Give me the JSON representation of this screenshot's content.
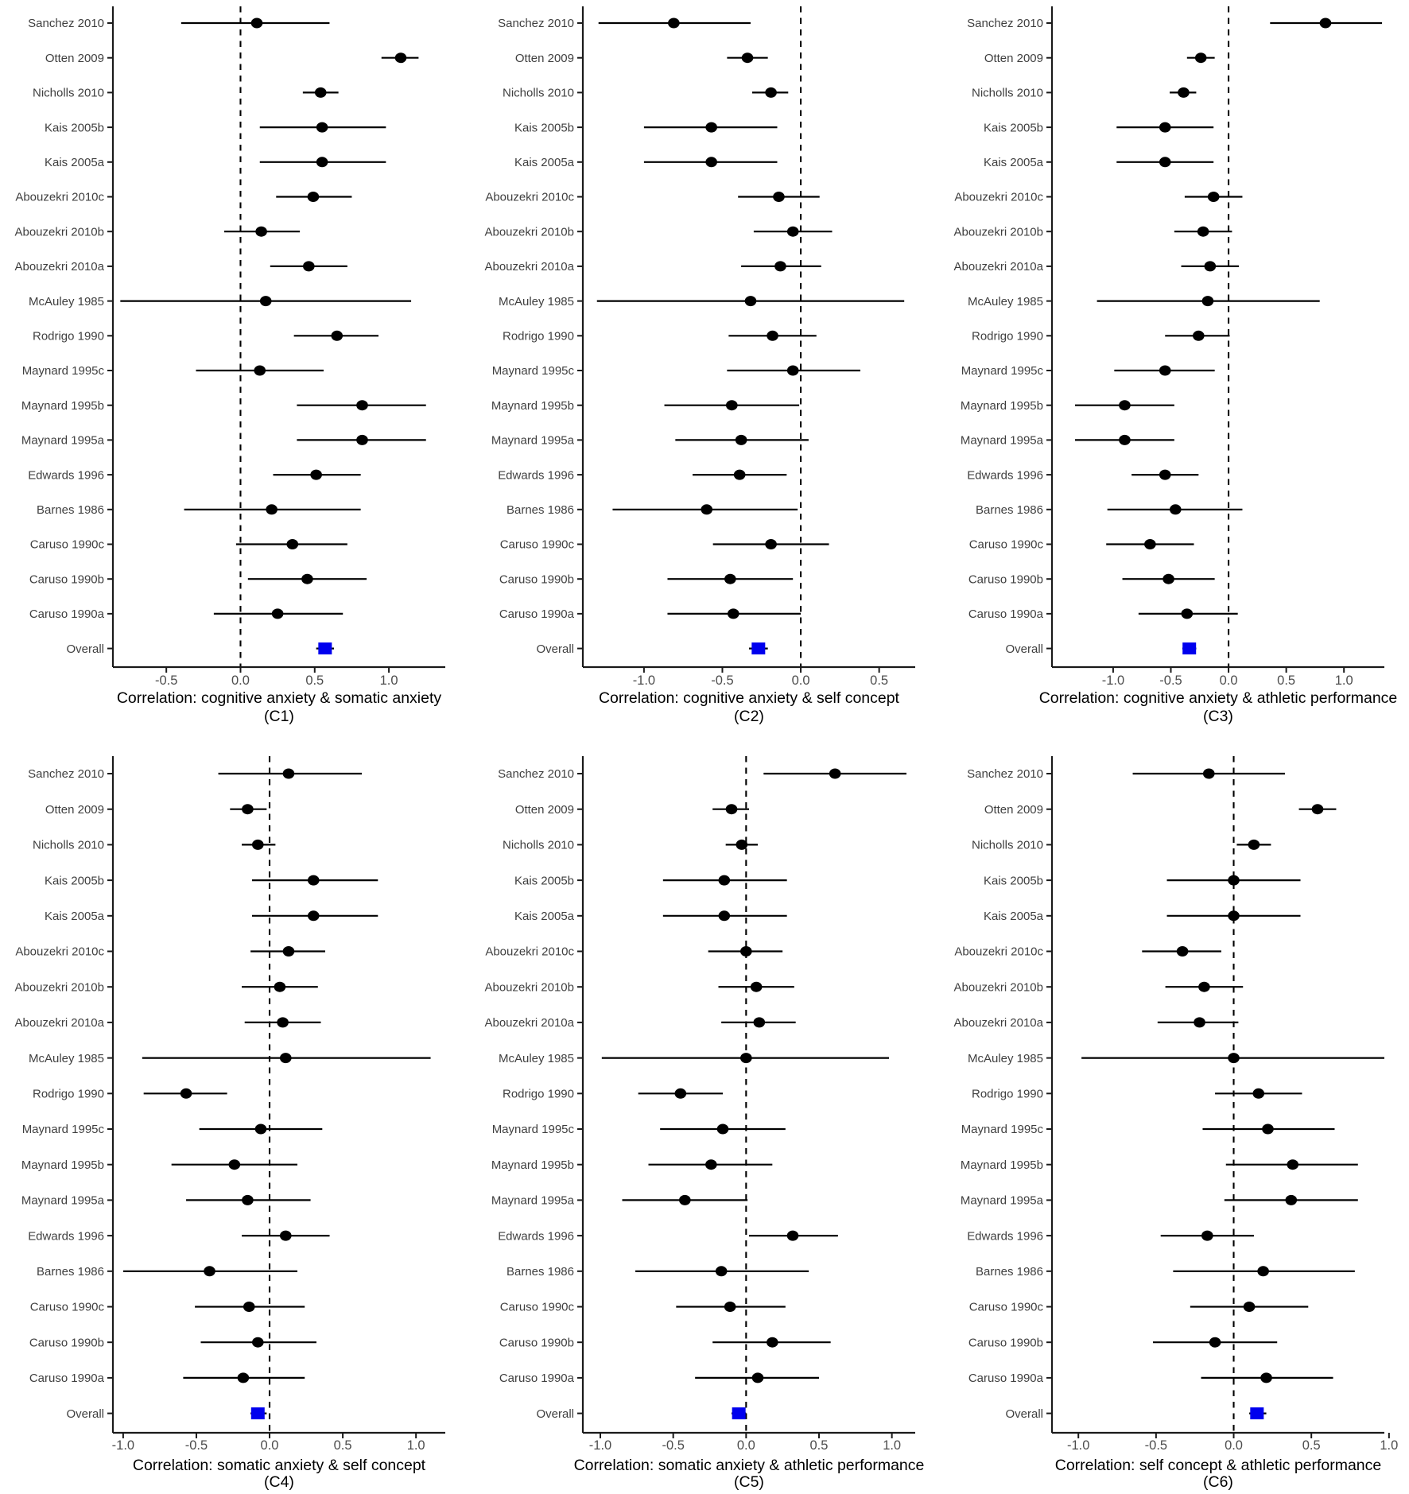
{
  "figure": {
    "background": "#ffffff",
    "point_color": "#000000",
    "summary_color": "#0000ee",
    "axis_color": "#1a1a1a",
    "ci_color": "#000000",
    "ref_line_color": "#000000",
    "study_label_color": "#3f3f3f",
    "tick_label_color": "#4d4d4d",
    "title_color": "#000000"
  },
  "chart_data": [
    {
      "id": "C1",
      "type": "scatter",
      "subtype": "forest",
      "title": "Correlation: cognitive anxiety & somatic anxiety",
      "panel_label": "(C1)",
      "legend": "none",
      "grid": false,
      "ref_line_x": 0,
      "xlim": [
        -0.86,
        1.38
      ],
      "x_tick_values": [
        -0.5,
        0.0,
        0.5,
        1.0
      ],
      "x_tick_labels": [
        "-0.5",
        "0.0",
        "0.5",
        "1.0"
      ],
      "rows": [
        {
          "label": "Sanchez 2010",
          "est": 0.11,
          "lo": -0.4,
          "hi": 0.6
        },
        {
          "label": "Otten 2009",
          "est": 1.08,
          "lo": 0.95,
          "hi": 1.2
        },
        {
          "label": "Nicholls 2010",
          "est": 0.54,
          "lo": 0.42,
          "hi": 0.66
        },
        {
          "label": "Kais 2005b",
          "est": 0.55,
          "lo": 0.13,
          "hi": 0.98
        },
        {
          "label": "Kais 2005a",
          "est": 0.55,
          "lo": 0.13,
          "hi": 0.98
        },
        {
          "label": "Abouzekri 2010c",
          "est": 0.49,
          "lo": 0.24,
          "hi": 0.75
        },
        {
          "label": "Abouzekri 2010b",
          "est": 0.14,
          "lo": -0.11,
          "hi": 0.4
        },
        {
          "label": "Abouzekri 2010a",
          "est": 0.46,
          "lo": 0.2,
          "hi": 0.72
        },
        {
          "label": "McAuley 1985",
          "est": 0.17,
          "lo": -0.81,
          "hi": 1.15
        },
        {
          "label": "Rodrigo 1990",
          "est": 0.65,
          "lo": 0.36,
          "hi": 0.93
        },
        {
          "label": "Maynard 1995c",
          "est": 0.13,
          "lo": -0.3,
          "hi": 0.56
        },
        {
          "label": "Maynard 1995b",
          "est": 0.82,
          "lo": 0.38,
          "hi": 1.25
        },
        {
          "label": "Maynard 1995a",
          "est": 0.82,
          "lo": 0.38,
          "hi": 1.25
        },
        {
          "label": "Edwards 1996",
          "est": 0.51,
          "lo": 0.22,
          "hi": 0.81
        },
        {
          "label": "Barnes 1986",
          "est": 0.21,
          "lo": -0.38,
          "hi": 0.81
        },
        {
          "label": "Caruso 1990c",
          "est": 0.35,
          "lo": -0.03,
          "hi": 0.72
        },
        {
          "label": "Caruso 1990b",
          "est": 0.45,
          "lo": 0.05,
          "hi": 0.85
        },
        {
          "label": "Caruso 1990a",
          "est": 0.25,
          "lo": -0.18,
          "hi": 0.69
        },
        {
          "label": "Overall",
          "est": 0.57,
          "lo": 0.51,
          "hi": 0.63,
          "summary": true
        }
      ]
    },
    {
      "id": "C2",
      "type": "scatter",
      "subtype": "forest",
      "title": "Correlation: cognitive anxiety & self concept",
      "panel_label": "(C2)",
      "legend": "none",
      "grid": false,
      "ref_line_x": 0,
      "xlim": [
        -1.39,
        0.73
      ],
      "x_tick_values": [
        -1.0,
        -0.5,
        0.0,
        0.5
      ],
      "x_tick_labels": [
        "-1.0",
        "-0.5",
        "0.0",
        "0.5"
      ],
      "rows": [
        {
          "label": "Sanchez 2010",
          "est": -0.81,
          "lo": -1.29,
          "hi": -0.32
        },
        {
          "label": "Otten 2009",
          "est": -0.34,
          "lo": -0.47,
          "hi": -0.21
        },
        {
          "label": "Nicholls 2010",
          "est": -0.19,
          "lo": -0.31,
          "hi": -0.08
        },
        {
          "label": "Kais 2005b",
          "est": -0.57,
          "lo": -1.0,
          "hi": -0.15
        },
        {
          "label": "Kais 2005a",
          "est": -0.57,
          "lo": -1.0,
          "hi": -0.15
        },
        {
          "label": "Abouzekri 2010c",
          "est": -0.14,
          "lo": -0.4,
          "hi": 0.12
        },
        {
          "label": "Abouzekri 2010b",
          "est": -0.05,
          "lo": -0.3,
          "hi": 0.2
        },
        {
          "label": "Abouzekri 2010a",
          "est": -0.13,
          "lo": -0.38,
          "hi": 0.13
        },
        {
          "label": "McAuley 1985",
          "est": -0.32,
          "lo": -1.3,
          "hi": 0.66
        },
        {
          "label": "Rodrigo 1990",
          "est": -0.18,
          "lo": -0.46,
          "hi": 0.1
        },
        {
          "label": "Maynard 1995c",
          "est": -0.05,
          "lo": -0.47,
          "hi": 0.38
        },
        {
          "label": "Maynard 1995b",
          "est": -0.44,
          "lo": -0.87,
          "hi": -0.01
        },
        {
          "label": "Maynard 1995a",
          "est": -0.38,
          "lo": -0.8,
          "hi": 0.05
        },
        {
          "label": "Edwards 1996",
          "est": -0.39,
          "lo": -0.69,
          "hi": -0.09
        },
        {
          "label": "Barnes 1986",
          "est": -0.6,
          "lo": -1.2,
          "hi": -0.02
        },
        {
          "label": "Caruso 1990c",
          "est": -0.19,
          "lo": -0.56,
          "hi": 0.18
        },
        {
          "label": "Caruso 1990b",
          "est": -0.45,
          "lo": -0.85,
          "hi": -0.05
        },
        {
          "label": "Caruso 1990a",
          "est": -0.43,
          "lo": -0.85,
          "hi": 0.0
        },
        {
          "label": "Overall",
          "est": -0.27,
          "lo": -0.33,
          "hi": -0.21,
          "summary": true
        }
      ]
    },
    {
      "id": "C3",
      "type": "scatter",
      "subtype": "forest",
      "title": "Correlation: cognitive anxiety & athletic performance",
      "panel_label": "(C3)",
      "legend": "none",
      "grid": false,
      "ref_line_x": 0,
      "xlim": [
        -1.53,
        1.35
      ],
      "x_tick_values": [
        -1.0,
        -0.5,
        0.0,
        0.5,
        1.0
      ],
      "x_tick_labels": [
        "-1.0",
        "-0.5",
        "0.0",
        "0.5",
        "1.0"
      ],
      "rows": [
        {
          "label": "Sanchez 2010",
          "est": 0.84,
          "lo": 0.36,
          "hi": 1.33
        },
        {
          "label": "Otten 2009",
          "est": -0.24,
          "lo": -0.36,
          "hi": -0.12
        },
        {
          "label": "Nicholls 2010",
          "est": -0.39,
          "lo": -0.51,
          "hi": -0.28
        },
        {
          "label": "Kais 2005b",
          "est": -0.55,
          "lo": -0.97,
          "hi": -0.13
        },
        {
          "label": "Kais 2005a",
          "est": -0.55,
          "lo": -0.97,
          "hi": -0.13
        },
        {
          "label": "Abouzekri 2010c",
          "est": -0.13,
          "lo": -0.38,
          "hi": 0.12
        },
        {
          "label": "Abouzekri 2010b",
          "est": -0.22,
          "lo": -0.47,
          "hi": 0.03
        },
        {
          "label": "Abouzekri 2010a",
          "est": -0.16,
          "lo": -0.41,
          "hi": 0.09
        },
        {
          "label": "McAuley 1985",
          "est": -0.18,
          "lo": -1.14,
          "hi": 0.79
        },
        {
          "label": "Rodrigo 1990",
          "est": -0.26,
          "lo": -0.55,
          "hi": 0.01
        },
        {
          "label": "Maynard 1995c",
          "est": -0.55,
          "lo": -0.99,
          "hi": -0.12
        },
        {
          "label": "Maynard 1995b",
          "est": -0.9,
          "lo": -1.33,
          "hi": -0.47
        },
        {
          "label": "Maynard 1995a",
          "est": -0.9,
          "lo": -1.33,
          "hi": -0.47
        },
        {
          "label": "Edwards 1996",
          "est": -0.55,
          "lo": -0.84,
          "hi": -0.26
        },
        {
          "label": "Barnes 1986",
          "est": -0.46,
          "lo": -1.05,
          "hi": 0.12
        },
        {
          "label": "Caruso 1990c",
          "est": -0.68,
          "lo": -1.06,
          "hi": -0.3
        },
        {
          "label": "Caruso 1990b",
          "est": -0.52,
          "lo": -0.92,
          "hi": -0.12
        },
        {
          "label": "Caruso 1990a",
          "est": -0.36,
          "lo": -0.78,
          "hi": 0.08
        },
        {
          "label": "Overall",
          "est": -0.34,
          "lo": -0.4,
          "hi": -0.28,
          "summary": true
        }
      ]
    },
    {
      "id": "C4",
      "type": "scatter",
      "subtype": "forest",
      "title": "Correlation: somatic anxiety & self concept",
      "panel_label": "(C4)",
      "legend": "none",
      "grid": false,
      "ref_line_x": 0,
      "xlim": [
        -1.07,
        1.2
      ],
      "x_tick_values": [
        -1.0,
        -0.5,
        0.0,
        0.5,
        1.0
      ],
      "x_tick_labels": [
        "-1.0",
        "-0.5",
        "0.0",
        "0.5",
        "1.0"
      ],
      "rows": [
        {
          "label": "Sanchez 2010",
          "est": 0.13,
          "lo": -0.35,
          "hi": 0.63
        },
        {
          "label": "Otten 2009",
          "est": -0.15,
          "lo": -0.27,
          "hi": -0.02
        },
        {
          "label": "Nicholls 2010",
          "est": -0.08,
          "lo": -0.19,
          "hi": 0.04
        },
        {
          "label": "Kais 2005b",
          "est": 0.3,
          "lo": -0.12,
          "hi": 0.74
        },
        {
          "label": "Kais 2005a",
          "est": 0.3,
          "lo": -0.12,
          "hi": 0.74
        },
        {
          "label": "Abouzekri 2010c",
          "est": 0.13,
          "lo": -0.13,
          "hi": 0.38
        },
        {
          "label": "Abouzekri 2010b",
          "est": 0.07,
          "lo": -0.19,
          "hi": 0.33
        },
        {
          "label": "Abouzekri 2010a",
          "est": 0.09,
          "lo": -0.17,
          "hi": 0.35
        },
        {
          "label": "McAuley 1985",
          "est": 0.11,
          "lo": -0.87,
          "hi": 1.1
        },
        {
          "label": "Rodrigo 1990",
          "est": -0.57,
          "lo": -0.86,
          "hi": -0.29
        },
        {
          "label": "Maynard 1995c",
          "est": -0.06,
          "lo": -0.48,
          "hi": 0.36
        },
        {
          "label": "Maynard 1995b",
          "est": -0.24,
          "lo": -0.67,
          "hi": 0.19
        },
        {
          "label": "Maynard 1995a",
          "est": -0.15,
          "lo": -0.57,
          "hi": 0.28
        },
        {
          "label": "Edwards 1996",
          "est": 0.11,
          "lo": -0.19,
          "hi": 0.41
        },
        {
          "label": "Barnes 1986",
          "est": -0.41,
          "lo": -1.0,
          "hi": 0.19
        },
        {
          "label": "Caruso 1990c",
          "est": -0.14,
          "lo": -0.51,
          "hi": 0.24
        },
        {
          "label": "Caruso 1990b",
          "est": -0.08,
          "lo": -0.47,
          "hi": 0.32
        },
        {
          "label": "Caruso 1990a",
          "est": -0.18,
          "lo": -0.59,
          "hi": 0.24
        },
        {
          "label": "Overall",
          "est": -0.08,
          "lo": -0.13,
          "hi": -0.02,
          "summary": true
        }
      ]
    },
    {
      "id": "C5",
      "type": "scatter",
      "subtype": "forest",
      "title": "Correlation: somatic anxiety & athletic performance",
      "panel_label": "(C5)",
      "legend": "none",
      "grid": false,
      "ref_line_x": 0,
      "xlim": [
        -1.12,
        1.16
      ],
      "x_tick_values": [
        -1.0,
        -0.5,
        0.0,
        0.5,
        1.0
      ],
      "x_tick_labels": [
        "-1.0",
        "-0.5",
        "0.0",
        "0.5",
        "1.0"
      ],
      "rows": [
        {
          "label": "Sanchez 2010",
          "est": 0.61,
          "lo": 0.12,
          "hi": 1.1
        },
        {
          "label": "Otten 2009",
          "est": -0.1,
          "lo": -0.23,
          "hi": 0.02
        },
        {
          "label": "Nicholls 2010",
          "est": -0.03,
          "lo": -0.14,
          "hi": 0.08
        },
        {
          "label": "Kais 2005b",
          "est": -0.15,
          "lo": -0.57,
          "hi": 0.28
        },
        {
          "label": "Kais 2005a",
          "est": -0.15,
          "lo": -0.57,
          "hi": 0.28
        },
        {
          "label": "Abouzekri 2010c",
          "est": 0.0,
          "lo": -0.26,
          "hi": 0.25
        },
        {
          "label": "Abouzekri 2010b",
          "est": 0.07,
          "lo": -0.19,
          "hi": 0.33
        },
        {
          "label": "Abouzekri 2010a",
          "est": 0.09,
          "lo": -0.17,
          "hi": 0.34
        },
        {
          "label": "McAuley 1985",
          "est": 0.0,
          "lo": -0.99,
          "hi": 0.98
        },
        {
          "label": "Rodrigo 1990",
          "est": -0.45,
          "lo": -0.74,
          "hi": -0.16
        },
        {
          "label": "Maynard 1995c",
          "est": -0.16,
          "lo": -0.59,
          "hi": 0.27
        },
        {
          "label": "Maynard 1995b",
          "est": -0.24,
          "lo": -0.67,
          "hi": 0.18
        },
        {
          "label": "Maynard 1995a",
          "est": -0.42,
          "lo": -0.85,
          "hi": 0.01
        },
        {
          "label": "Edwards 1996",
          "est": 0.32,
          "lo": 0.02,
          "hi": 0.63
        },
        {
          "label": "Barnes 1986",
          "est": -0.17,
          "lo": -0.76,
          "hi": 0.43
        },
        {
          "label": "Caruso 1990c",
          "est": -0.11,
          "lo": -0.48,
          "hi": 0.27
        },
        {
          "label": "Caruso 1990b",
          "est": 0.18,
          "lo": -0.23,
          "hi": 0.58
        },
        {
          "label": "Caruso 1990a",
          "est": 0.08,
          "lo": -0.35,
          "hi": 0.5
        },
        {
          "label": "Overall",
          "est": -0.05,
          "lo": -0.1,
          "hi": 0.0,
          "summary": true
        }
      ]
    },
    {
      "id": "C6",
      "type": "scatter",
      "subtype": "forest",
      "title": "Correlation: self concept & athletic performance",
      "panel_label": "(C6)",
      "legend": "none",
      "grid": false,
      "ref_line_x": 0,
      "xlim": [
        -1.17,
        0.97
      ],
      "x_tick_values": [
        -1.0,
        -0.5,
        0.0,
        0.5,
        1.0
      ],
      "x_tick_labels": [
        "-1.0",
        "-0.5",
        "0.0",
        "0.5",
        "1.0"
      ],
      "rows": [
        {
          "label": "Sanchez 2010",
          "est": -0.16,
          "lo": -0.65,
          "hi": 0.33
        },
        {
          "label": "Otten 2009",
          "est": 0.54,
          "lo": 0.42,
          "hi": 0.66
        },
        {
          "label": "Nicholls 2010",
          "est": 0.13,
          "lo": 0.02,
          "hi": 0.24
        },
        {
          "label": "Kais 2005b",
          "est": 0.0,
          "lo": -0.43,
          "hi": 0.43
        },
        {
          "label": "Kais 2005a",
          "est": 0.0,
          "lo": -0.43,
          "hi": 0.43
        },
        {
          "label": "Abouzekri 2010c",
          "est": -0.33,
          "lo": -0.59,
          "hi": -0.08
        },
        {
          "label": "Abouzekri 2010b",
          "est": -0.19,
          "lo": -0.44,
          "hi": 0.06
        },
        {
          "label": "Abouzekri 2010a",
          "est": -0.22,
          "lo": -0.49,
          "hi": 0.03
        },
        {
          "label": "McAuley 1985",
          "est": 0.0,
          "lo": -0.98,
          "hi": 0.97
        },
        {
          "label": "Rodrigo 1990",
          "est": 0.16,
          "lo": -0.12,
          "hi": 0.44
        },
        {
          "label": "Maynard 1995c",
          "est": 0.22,
          "lo": -0.2,
          "hi": 0.65
        },
        {
          "label": "Maynard 1995b",
          "est": 0.38,
          "lo": -0.05,
          "hi": 0.8
        },
        {
          "label": "Maynard 1995a",
          "est": 0.37,
          "lo": -0.06,
          "hi": 0.8
        },
        {
          "label": "Edwards 1996",
          "est": -0.17,
          "lo": -0.47,
          "hi": 0.13
        },
        {
          "label": "Barnes 1986",
          "est": 0.19,
          "lo": -0.39,
          "hi": 0.78
        },
        {
          "label": "Caruso 1990c",
          "est": 0.1,
          "lo": -0.28,
          "hi": 0.48
        },
        {
          "label": "Caruso 1990b",
          "est": -0.12,
          "lo": -0.52,
          "hi": 0.28
        },
        {
          "label": "Caruso 1990a",
          "est": 0.21,
          "lo": -0.21,
          "hi": 0.64
        },
        {
          "label": "Overall",
          "est": 0.15,
          "lo": 0.1,
          "hi": 0.21,
          "summary": true
        }
      ]
    }
  ]
}
